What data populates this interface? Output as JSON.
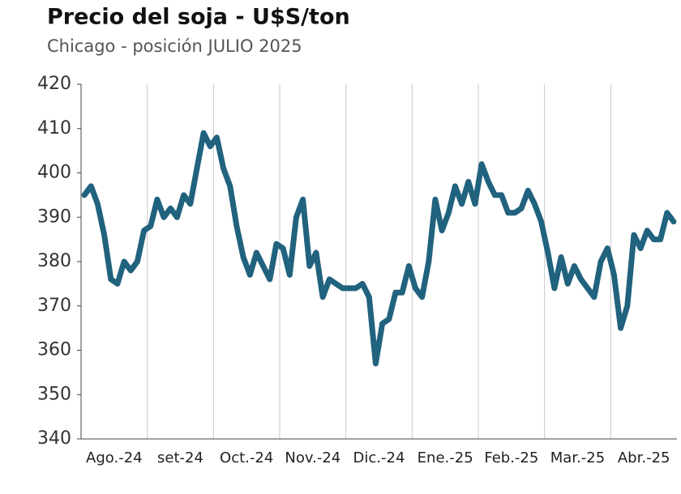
{
  "chart_data": {
    "type": "line",
    "title": "Precio del soja - U$S/ton",
    "subtitle": "Chicago - posición JULIO 2025",
    "categories": [
      "Ago.-24",
      "set-24",
      "Oct.-24",
      "Nov.-24",
      "Dic.-24",
      "Ene.-25",
      "Feb.-25",
      "Mar.-25",
      "Abr.-25"
    ],
    "values": [
      [
        395,
        397,
        393,
        386,
        376,
        375,
        380,
        378,
        380,
        387
      ],
      [
        388,
        394,
        390,
        392,
        390,
        395,
        393,
        401,
        409,
        406
      ],
      [
        408,
        401,
        397,
        388,
        381,
        377,
        382,
        379,
        376,
        384
      ],
      [
        383,
        377,
        390,
        394,
        379,
        382,
        372,
        376,
        375,
        374
      ],
      [
        374,
        374,
        375,
        372,
        357,
        366,
        367,
        373,
        373,
        379
      ],
      [
        374,
        372,
        380,
        394,
        387,
        391,
        397,
        393,
        398,
        393
      ],
      [
        402,
        398,
        395,
        395,
        391,
        391,
        392,
        396,
        393,
        389
      ],
      [
        382,
        374,
        381,
        375,
        379,
        376,
        374,
        372,
        380,
        383
      ],
      [
        377,
        365,
        370,
        386,
        383,
        387,
        385,
        385,
        391,
        389
      ]
    ],
    "color": "#21627e",
    "ylim": [
      340,
      420
    ],
    "yticks": [
      340,
      350,
      360,
      370,
      380,
      390,
      400,
      410,
      420
    ],
    "grid": "x"
  }
}
